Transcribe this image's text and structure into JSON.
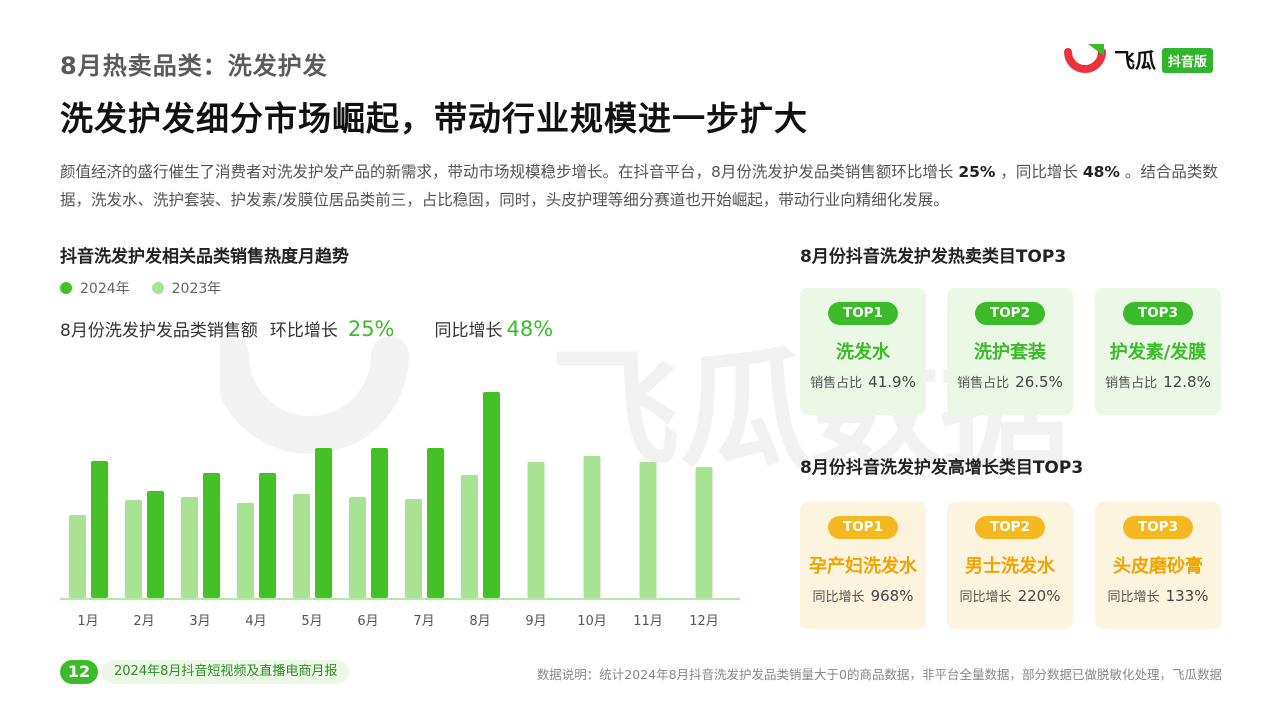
{
  "header": {
    "topic": "8月热卖品类：洗发护发",
    "headline": "洗发护发细分市场崛起，带动行业规模进一步扩大"
  },
  "logo": {
    "name": "飞瓜",
    "badge": "抖音版",
    "brand_color": "#e9323b"
  },
  "intro": {
    "p1": "颜值经济的盛行催生了消费者对洗发护发产品的新需求，带动市场规模稳步增长。在抖音平台，8月份洗发护发品类销售额环比增长",
    "mom": "25%",
    "p2": "，同比增长",
    "yoy": "48%",
    "p3": "。结合品类数据，洗发水、洗护套装、护发素/发膜位居品类前三，占比稳固，同时，头皮护理等细分赛道也开始崛起，带动行业向精细化发展。"
  },
  "trend": {
    "title": "抖音洗发护发相关品类销售热度月趋势",
    "metric_label": "8月份洗发护发品类销售额",
    "mom_label": "环比增长",
    "mom_value": "25%",
    "yoy_label": "同比增长",
    "yoy_value": "48%"
  },
  "chart_data": {
    "type": "bar",
    "categories": [
      "1月",
      "2月",
      "3月",
      "4月",
      "5月",
      "6月",
      "7月",
      "8月",
      "9月",
      "10月",
      "11月",
      "12月"
    ],
    "series": [
      {
        "name": "2024年",
        "color": "#44c225",
        "values": [
          137,
          107,
          125,
          125,
          150,
          150,
          150,
          206,
          null,
          null,
          null,
          null
        ]
      },
      {
        "name": "2023年",
        "color": "#a8e293",
        "values": [
          83,
          98,
          101,
          95,
          104,
          101,
          99,
          123,
          136,
          142,
          136,
          131
        ]
      }
    ],
    "ylim": [
      0,
      220
    ],
    "grid": false,
    "legend_position": "top-left",
    "axis_color": "#b6e8a6"
  },
  "watermark": "飞瓜数据",
  "hot_top3": {
    "title": "8月份抖音洗发护发热卖类目TOP3",
    "items": [
      {
        "rank": "TOP1",
        "name": "洗发水",
        "metric": "销售占比",
        "value": "41.9%"
      },
      {
        "rank": "TOP2",
        "name": "洗护套装",
        "metric": "销售占比",
        "value": "26.5%"
      },
      {
        "rank": "TOP3",
        "name": "护发素/发膜",
        "metric": "销售占比",
        "value": "12.8%"
      }
    ]
  },
  "growth_top3": {
    "title": "8月份抖音洗发护发高增长类目TOP3",
    "items": [
      {
        "rank": "TOP1",
        "name": "孕产妇洗发水",
        "metric": "同比增长",
        "value": "968%"
      },
      {
        "rank": "TOP2",
        "name": "男士洗发水",
        "metric": "同比增长",
        "value": "220%"
      },
      {
        "rank": "TOP3",
        "name": "头皮磨砂膏",
        "metric": "同比增长",
        "value": "133%"
      }
    ]
  },
  "footer": {
    "page": "12",
    "report": "2024年8月抖音短视频及直播电商月报",
    "note": "数据说明：统计2024年8月抖音洗发护发品类销量大于0的商品数据，非平台全量数据，部分数据已做脱敏化处理，飞瓜数据"
  }
}
